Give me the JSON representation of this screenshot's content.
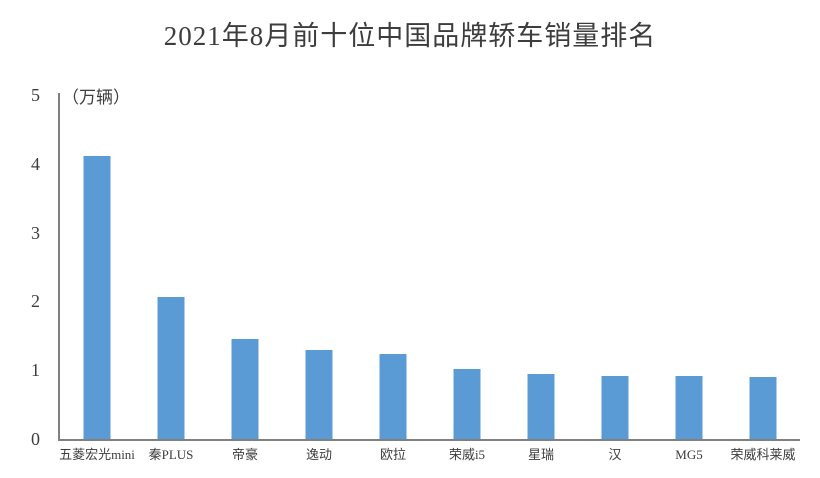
{
  "chart_data": {
    "type": "bar",
    "title": "2021年8月前十位中国品牌轿车销量排名",
    "unit_label": "（万辆）",
    "xlabel": "",
    "ylabel": "万辆",
    "categories": [
      "五菱宏光mini",
      "秦PLUS",
      "帝豪",
      "逸动",
      "欧拉",
      "荣威i5",
      "星瑞",
      "汉",
      "MG5",
      "荣威科莱威"
    ],
    "values": [
      4.12,
      2.07,
      1.45,
      1.3,
      1.23,
      1.02,
      0.94,
      0.92,
      0.92,
      0.9
    ],
    "ylim": [
      0,
      5
    ],
    "y_ticks": [
      0,
      1,
      2,
      3,
      4,
      5
    ],
    "grid": false,
    "legend_position": "none",
    "bar_color": "#5B9BD5",
    "axis_color": "#808080",
    "text_color": "#3d3d3d"
  }
}
